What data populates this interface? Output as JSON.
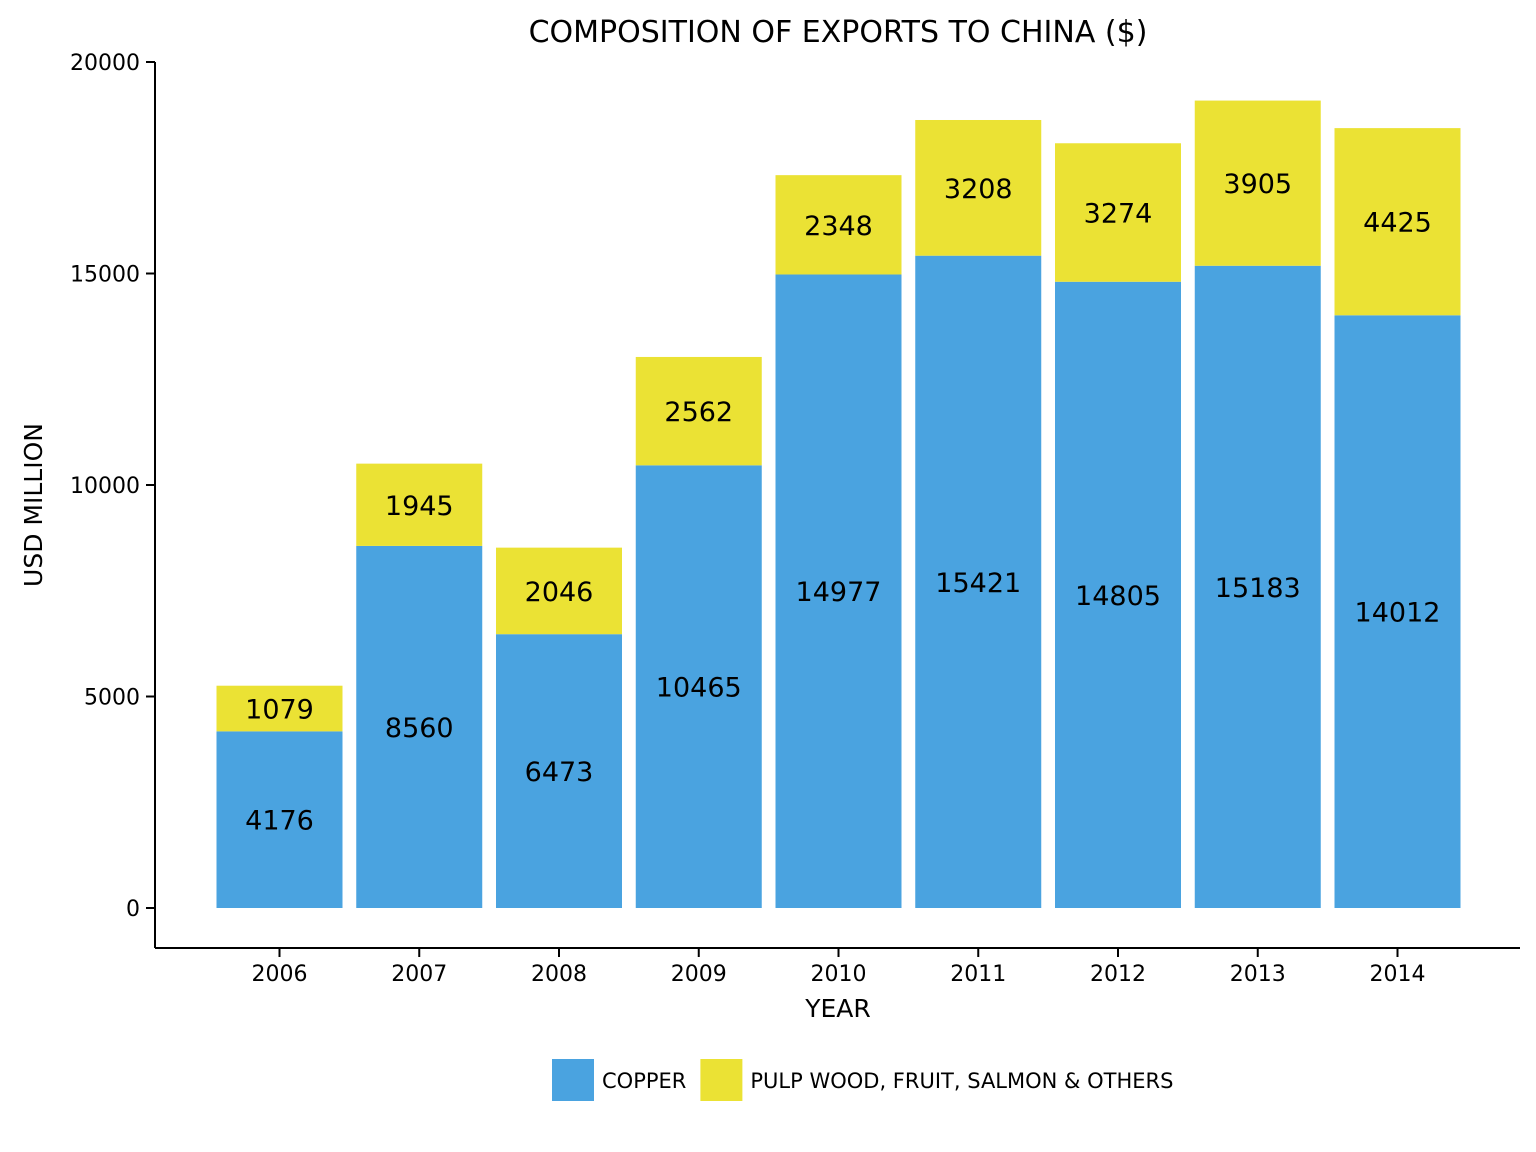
{
  "chart_data": {
    "type": "bar",
    "stacked": true,
    "title": "COMPOSITION OF EXPORTS TO CHINA ($)",
    "xlabel": "YEAR",
    "ylabel": "USD MILLION",
    "categories": [
      "2006",
      "2007",
      "2008",
      "2009",
      "2010",
      "2011",
      "2012",
      "2013",
      "2014"
    ],
    "ylim": [
      0,
      20000
    ],
    "yticks": [
      0,
      5000,
      10000,
      15000,
      20000
    ],
    "grid": false,
    "legend_position": "bottom",
    "series": [
      {
        "name": "COPPER",
        "color": "#4aa3e0",
        "values": [
          4176,
          8560,
          6473,
          10465,
          14977,
          15421,
          14805,
          15183,
          14012
        ]
      },
      {
        "name": "PULP WOOD, FRUIT, SALMON & OTHERS",
        "color": "#ebe234",
        "values": [
          1079,
          1945,
          2046,
          2562,
          2348,
          3208,
          3274,
          3905,
          4425
        ]
      }
    ]
  }
}
